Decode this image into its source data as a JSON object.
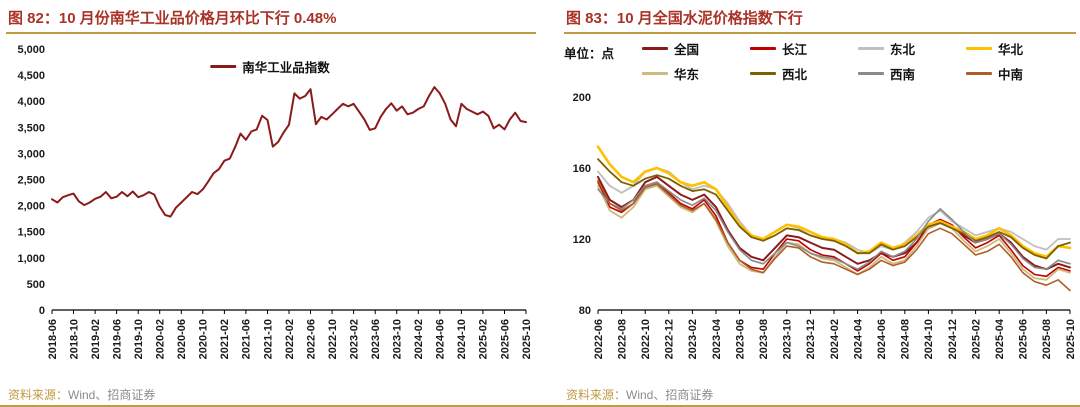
{
  "colors": {
    "gold": "#BF9C42",
    "titlered": "#A93226",
    "srcgray": "#8C8C8C",
    "axistext": "#1A1A1A"
  },
  "panels": [
    {
      "title": "图 82：10 月份南华工业品价格月环比下行 0.48%",
      "source_label": "资料来源：",
      "source_text": "Wind、招商证券"
    },
    {
      "title": "图 83：10 月全国水泥价格指数下行",
      "unit_label": "单位：点",
      "source_label": "资料来源：",
      "source_text": "Wind、招商证券"
    }
  ],
  "chart_data": [
    {
      "type": "line",
      "title": "10 月份南华工业品价格月环比下行 0.48%",
      "xlabel": "",
      "ylabel": "",
      "ylim": [
        0,
        5000
      ],
      "yticks": [
        0,
        500,
        1000,
        1500,
        2000,
        2500,
        3000,
        3500,
        4000,
        4500,
        5000
      ],
      "y_format": "comma",
      "xtick_step": 4,
      "grid": false,
      "legend_position": "top-center",
      "x": [
        "2018-06",
        "2018-07",
        "2018-08",
        "2018-09",
        "2018-10",
        "2018-11",
        "2018-12",
        "2019-01",
        "2019-02",
        "2019-03",
        "2019-04",
        "2019-05",
        "2019-06",
        "2019-07",
        "2019-08",
        "2019-09",
        "2019-10",
        "2019-11",
        "2019-12",
        "2020-01",
        "2020-02",
        "2020-03",
        "2020-04",
        "2020-05",
        "2020-06",
        "2020-07",
        "2020-08",
        "2020-09",
        "2020-10",
        "2020-11",
        "2020-12",
        "2021-01",
        "2021-02",
        "2021-03",
        "2021-04",
        "2021-05",
        "2021-06",
        "2021-07",
        "2021-08",
        "2021-09",
        "2021-10",
        "2021-11",
        "2021-12",
        "2022-01",
        "2022-02",
        "2022-03",
        "2022-04",
        "2022-05",
        "2022-06",
        "2022-07",
        "2022-08",
        "2022-09",
        "2022-10",
        "2022-11",
        "2022-12",
        "2023-01",
        "2023-02",
        "2023-03",
        "2023-04",
        "2023-05",
        "2023-06",
        "2023-07",
        "2023-08",
        "2023-09",
        "2023-10",
        "2023-11",
        "2023-12",
        "2024-01",
        "2024-02",
        "2024-03",
        "2024-04",
        "2024-05",
        "2024-06",
        "2024-07",
        "2024-08",
        "2024-09",
        "2024-10",
        "2024-11",
        "2024-12",
        "2025-01",
        "2025-02",
        "2025-03",
        "2025-04",
        "2025-05",
        "2025-06",
        "2025-07",
        "2025-08",
        "2025-09",
        "2025-10"
      ],
      "series": [
        {
          "name": "南华工业品指数",
          "color": "#8B1A1A",
          "lw": 2,
          "values": [
            2120,
            2060,
            2160,
            2200,
            2230,
            2080,
            2010,
            2060,
            2130,
            2170,
            2260,
            2140,
            2170,
            2260,
            2180,
            2270,
            2160,
            2200,
            2260,
            2210,
            1980,
            1820,
            1790,
            1960,
            2060,
            2160,
            2260,
            2220,
            2310,
            2460,
            2620,
            2700,
            2860,
            2900,
            3120,
            3380,
            3260,
            3420,
            3460,
            3720,
            3640,
            3130,
            3220,
            3400,
            3550,
            4150,
            4050,
            4100,
            4230,
            3560,
            3700,
            3650,
            3750,
            3850,
            3950,
            3900,
            3950,
            3800,
            3650,
            3450,
            3480,
            3700,
            3850,
            3960,
            3820,
            3900,
            3750,
            3780,
            3850,
            3900,
            4100,
            4270,
            4150,
            3950,
            3650,
            3520,
            3950,
            3850,
            3800,
            3750,
            3800,
            3720,
            3480,
            3550,
            3460,
            3650,
            3780,
            3620,
            3600
          ]
        }
      ]
    },
    {
      "type": "line",
      "title": "10 月全国水泥价格指数下行",
      "unit": "点",
      "xlabel": "",
      "ylabel": "",
      "ylim": [
        80,
        200
      ],
      "yticks": [
        80,
        120,
        160,
        200
      ],
      "xtick_step": 2,
      "grid": false,
      "legend_position": "top",
      "x": [
        "2022-06",
        "2022-07",
        "2022-08",
        "2022-09",
        "2022-10",
        "2022-11",
        "2022-12",
        "2023-01",
        "2023-02",
        "2023-03",
        "2023-04",
        "2023-05",
        "2023-06",
        "2023-07",
        "2023-08",
        "2023-09",
        "2023-10",
        "2023-11",
        "2023-12",
        "2024-01",
        "2024-02",
        "2024-03",
        "2024-04",
        "2024-05",
        "2024-06",
        "2024-07",
        "2024-08",
        "2024-09",
        "2024-10",
        "2024-11",
        "2024-12",
        "2025-01",
        "2025-02",
        "2025-03",
        "2025-04",
        "2025-05",
        "2025-06",
        "2025-07",
        "2025-08",
        "2025-09",
        "2025-10"
      ],
      "series": [
        {
          "name": "全国",
          "color": "#8B1A1A",
          "lw": 2,
          "values": [
            155,
            142,
            138,
            142,
            152,
            155,
            150,
            145,
            142,
            145,
            138,
            125,
            115,
            110,
            108,
            115,
            122,
            121,
            118,
            115,
            114,
            110,
            106,
            108,
            112,
            110,
            112,
            118,
            126,
            129,
            127,
            122,
            118,
            120,
            123,
            118,
            110,
            105,
            103,
            106,
            104
          ]
        },
        {
          "name": "长江",
          "color": "#C00000",
          "lw": 1.6,
          "values": [
            152,
            138,
            135,
            140,
            150,
            152,
            146,
            140,
            137,
            142,
            133,
            118,
            108,
            104,
            103,
            112,
            120,
            119,
            114,
            111,
            110,
            106,
            102,
            106,
            112,
            108,
            110,
            118,
            128,
            131,
            128,
            121,
            115,
            118,
            122,
            114,
            105,
            100,
            99,
            104,
            102
          ]
        },
        {
          "name": "东北",
          "color": "#BFBFBF",
          "lw": 1.8,
          "values": [
            158,
            150,
            146,
            150,
            158,
            160,
            158,
            152,
            148,
            150,
            148,
            140,
            130,
            122,
            120,
            124,
            128,
            126,
            122,
            120,
            120,
            118,
            114,
            112,
            116,
            114,
            118,
            124,
            132,
            136,
            130,
            126,
            122,
            124,
            126,
            124,
            120,
            116,
            114,
            120,
            120
          ]
        },
        {
          "name": "华北",
          "color": "#FFC000",
          "lw": 2.6,
          "values": [
            172,
            162,
            155,
            152,
            158,
            160,
            157,
            152,
            150,
            152,
            148,
            138,
            128,
            122,
            120,
            124,
            128,
            127,
            124,
            121,
            120,
            117,
            112,
            113,
            118,
            115,
            117,
            122,
            128,
            130,
            127,
            124,
            120,
            122,
            126,
            122,
            116,
            112,
            110,
            116,
            115
          ]
        },
        {
          "name": "华东",
          "color": "#CDBA7E",
          "lw": 1.8,
          "values": [
            150,
            136,
            132,
            138,
            148,
            150,
            144,
            138,
            135,
            140,
            130,
            116,
            106,
            102,
            101,
            110,
            118,
            117,
            112,
            109,
            108,
            104,
            100,
            104,
            110,
            106,
            108,
            116,
            126,
            129,
            126,
            119,
            113,
            116,
            120,
            112,
            103,
            98,
            97,
            103,
            101
          ]
        },
        {
          "name": "西北",
          "color": "#7F6000",
          "lw": 1.8,
          "values": [
            165,
            158,
            152,
            150,
            154,
            156,
            154,
            150,
            147,
            148,
            145,
            136,
            127,
            121,
            119,
            122,
            126,
            125,
            122,
            120,
            119,
            116,
            112,
            112,
            117,
            114,
            116,
            121,
            127,
            129,
            126,
            123,
            119,
            121,
            124,
            121,
            115,
            111,
            109,
            116,
            118
          ]
        },
        {
          "name": "西南",
          "color": "#8A8A8A",
          "lw": 1.6,
          "values": [
            148,
            140,
            137,
            142,
            150,
            152,
            147,
            142,
            139,
            143,
            136,
            124,
            114,
            108,
            106,
            112,
            118,
            116,
            112,
            110,
            109,
            106,
            103,
            107,
            113,
            110,
            113,
            120,
            130,
            137,
            131,
            124,
            118,
            120,
            123,
            117,
            109,
            104,
            103,
            108,
            106
          ]
        },
        {
          "name": "中南",
          "color": "#AE5E26",
          "lw": 1.6,
          "values": [
            153,
            140,
            136,
            140,
            149,
            151,
            145,
            139,
            136,
            140,
            131,
            118,
            108,
            103,
            101,
            109,
            116,
            115,
            110,
            107,
            106,
            103,
            100,
            103,
            108,
            105,
            107,
            114,
            123,
            126,
            123,
            117,
            111,
            113,
            117,
            110,
            101,
            96,
            94,
            97,
            91
          ]
        }
      ]
    }
  ]
}
